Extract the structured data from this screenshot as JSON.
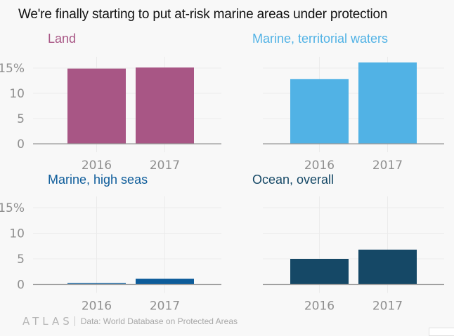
{
  "title": "We're finally starting to put at-risk marine areas under protection",
  "footer": {
    "logo": "ATLAS",
    "source": "Data: World Database on Protected Areas"
  },
  "chart_data": [
    {
      "type": "bar",
      "title": "Land",
      "color": "#a85685",
      "categories": [
        "2016",
        "2017"
      ],
      "values": [
        14.9,
        15.1
      ],
      "ylim": [
        0,
        15
      ],
      "yticks": [
        "0",
        "5",
        "10",
        "15%"
      ],
      "show_yticks": true,
      "grid": true
    },
    {
      "type": "bar",
      "title": "Marine, territorial waters",
      "color": "#51b2e5",
      "categories": [
        "2016",
        "2017"
      ],
      "values": [
        12.8,
        16.1
      ],
      "ylim": [
        0,
        15
      ],
      "yticks": [
        "0",
        "5",
        "10",
        "15%"
      ],
      "show_yticks": false,
      "grid": true
    },
    {
      "type": "bar",
      "title": "Marine, high seas",
      "color": "#0d5c9a",
      "categories": [
        "2016",
        "2017"
      ],
      "values": [
        0.25,
        1.1
      ],
      "ylim": [
        0,
        15
      ],
      "yticks": [
        "0",
        "5",
        "10",
        "15%"
      ],
      "show_yticks": true,
      "grid": true
    },
    {
      "type": "bar",
      "title": "Ocean, overall",
      "color": "#154866",
      "categories": [
        "2016",
        "2017"
      ],
      "values": [
        5.0,
        6.8
      ],
      "ylim": [
        0,
        15
      ],
      "yticks": [
        "0",
        "5",
        "10",
        "15%"
      ],
      "show_yticks": false,
      "grid": true
    }
  ]
}
